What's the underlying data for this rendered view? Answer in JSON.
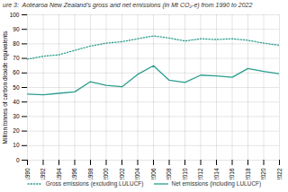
{
  "chart_data": {
    "type": "line",
    "title": "ure 3:  Aotearoa New Zealand’s gross and net emissions (in Mt CO₂-e) from 1990 to 2022",
    "ylabel": "Million tonnes of carbon dioxide equivalents",
    "x": [
      1990,
      1992,
      1994,
      1996,
      1998,
      2000,
      2002,
      2004,
      2006,
      2008,
      2010,
      2012,
      2014,
      2016,
      2018,
      2020,
      2022
    ],
    "series": [
      {
        "name": "Gross emissions (excluding LULUCF)",
        "color": "#2a9d8f",
        "line_style": "dotted",
        "values": [
          69.5,
          71.5,
          72.5,
          75.5,
          78.5,
          80.5,
          81.5,
          83.5,
          85.5,
          84.0,
          82.0,
          83.5,
          83.0,
          83.5,
          82.5,
          80.5,
          79.0
        ]
      },
      {
        "name": "Net emissions (including LULUCF)",
        "color": "#2a9d8f",
        "line_style": "solid",
        "values": [
          45.5,
          45.0,
          46.0,
          47.0,
          54.0,
          51.5,
          50.5,
          59.0,
          65.0,
          55.0,
          53.5,
          58.5,
          58.0,
          57.0,
          63.0,
          61.0,
          59.5
        ]
      }
    ],
    "xlim": [
      1990,
      2022
    ],
    "xticks": [
      1990,
      1992,
      1994,
      1996,
      1998,
      2000,
      2002,
      2004,
      2006,
      2008,
      2010,
      2012,
      2014,
      2016,
      2018,
      2020,
      2022
    ],
    "ylim": [
      0,
      100
    ],
    "yticks": [
      0,
      10,
      20,
      30,
      40,
      50,
      60,
      70,
      80,
      90,
      100
    ],
    "grid": true,
    "legend": "bottom"
  }
}
